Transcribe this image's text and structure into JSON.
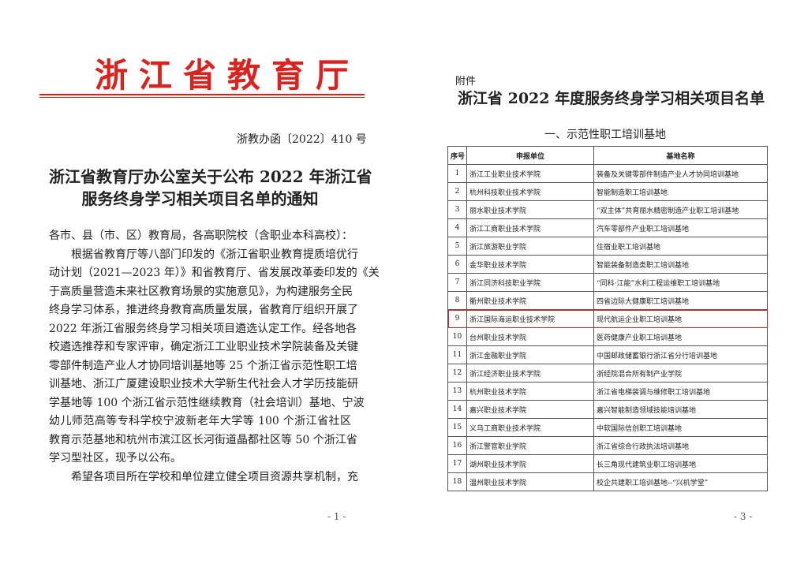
{
  "left_page": {
    "header": "浙江省教育厅",
    "doc_number": "浙教办函〔2022〕410 号",
    "title": [
      "浙江省教育厅办公室关于公布 2022 年浙江省",
      "服务终身学习相关项目名单的通知"
    ],
    "salutation": "各市、县（市、区）教育局，各高职院校（含职业本科高校）：",
    "paragraphs": [
      [
        "根据省教育厅等八部门印发的《浙江省职业教育提质培优行",
        "动计划（2021—2023 年）》和省教育厅、省发展改革委印发的《关",
        "于高质量营造未来社区教育场景的实施意见》，为构建服务全民",
        "终身学习体系，推进终身教育高质量发展，省教育厅组织开展了",
        "2022 年浙江省服务终身学习相关项目遴选认定工作。经各地各",
        "校遴选推荐和专家评审，确定浙江工业职业技术学院装备及关键",
        "零部件制造产业人才协同培训基地等 25 个浙江省示范性职工培",
        "训基地、浙江广厦建设职业技术大学新生代社会人才学历技能研",
        "学基地等 100 个浙江省示范性继续教育（社会培训）基地、宁波",
        "幼儿师范高等专科学校宁波新老年大学等 100 个浙江省社区",
        "教育示范基地和杭州市滨江区长河街道晶都社区等 50 个浙江省",
        "学习型社区，现予以公布。"
      ],
      [
        "希望各项目所在学校和单位建立健全项目资源共享机制，充"
      ]
    ],
    "page_number": "- 1 -"
  },
  "right_page": {
    "attachment": "附件",
    "title": "浙江省 2022 年度服务终身学习相关项目名单",
    "section": "一、示范性职工培训基地",
    "table": {
      "header": [
        "序号",
        "申报单位",
        "基地名称"
      ],
      "rows": [
        [
          "1",
          "浙江工业职业技术学院",
          "装备及关键零部件制造产业人才协同培训基地"
        ],
        [
          "2",
          "杭州科技职业技术学院",
          "智能制造职工培训基地"
        ],
        [
          "3",
          "丽水职业技术学院",
          "“双主体”共育丽水精密制造产业职工培训基地"
        ],
        [
          "4",
          "浙江工商职业技术学院",
          "汽车零部件产业职工培训基地"
        ],
        [
          "5",
          "浙江旅游职业学院",
          "住宿业职工培训基地"
        ],
        [
          "6",
          "金华职业技术学院",
          "智能装备制造类职工培训基地"
        ],
        [
          "7",
          "浙江同济科技职业学院",
          "“同科·江能”水利工程运维职工培训基地"
        ],
        [
          "8",
          "衢州职业技术学院",
          "四省边际大健康职工培训基地"
        ],
        [
          "9",
          "浙江国际海运职业技术学院",
          "现代航运企业职工培训基地"
        ],
        [
          "10",
          "台州职业技术学院",
          "医药健康产业职工培训基地"
        ],
        [
          "11",
          "浙江金融职业学院",
          "中国邮政储蓄银行浙江省分行培训基地"
        ],
        [
          "12",
          "浙江经济职业技术学院",
          "浙经院混合所有制产业学院"
        ],
        [
          "13",
          "杭州职业技术学院",
          "浙江省电梯装调与维修职工培训基地"
        ],
        [
          "14",
          "嘉兴职业技术学院",
          "嘉兴智能制造领域技能培训基地"
        ],
        [
          "15",
          "义乌工商职业技术学院",
          "中软国际信创职工培训基地"
        ],
        [
          "16",
          "浙江警官职业学院",
          "浙江省综合行政执法培训基地"
        ],
        [
          "17",
          "湖州职业技术学院",
          "长三角现代建筑业职工培训基地"
        ],
        [
          "18",
          "温州职业技术学院",
          "校企共建职工培训基地--“兴机学堂”"
        ]
      ]
    },
    "page_number": "- 3 -"
  }
}
